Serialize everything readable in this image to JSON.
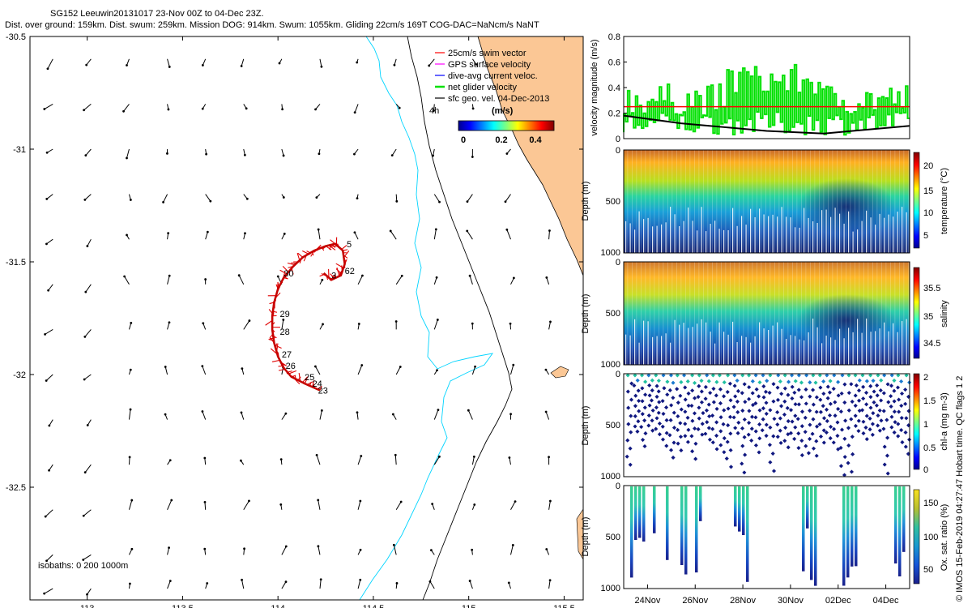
{
  "header": {
    "line1": "SG152 Leeuwin20131017 23-Nov 00Z to 04-Dec 23Z.",
    "line2": "Dist. over ground: 159km. Dist. swum: 259km. Mission DOG: 914km. Swum: 1055km. Gliding 22cm/s 169T COG-DAC=NaNcm/s NaNT"
  },
  "footer": "© IMOS 15-Feb-2019 04:27:47 Hobart time. QC flags 1  2",
  "colors": {
    "land": "#fbc795",
    "coast": "#000000",
    "isobath_cyan": "#00d4ff",
    "track": "#e00000",
    "net": "#00e000",
    "swim": "#ff0000"
  },
  "chart_data": [
    {
      "type": "map",
      "name": "glider-track-map",
      "xlim": [
        112.7,
        115.6
      ],
      "ylim": [
        -33.0,
        -30.5
      ],
      "xticks": [
        113,
        113.5,
        114,
        114.5,
        115,
        115.5
      ],
      "yticks": [
        -30.5,
        -31,
        -31.5,
        -32,
        -32.5
      ],
      "xtick_labels": [
        "113",
        "113.5",
        "114",
        "114.5",
        "115",
        "115.5"
      ],
      "ytick_labels": [
        "-30.5",
        "-31",
        "-31.5",
        "-32",
        "-32.5"
      ],
      "legend": {
        "placement": "top-right",
        "entries": [
          {
            "label": "25cm/s swim vector",
            "color": "#ff0000"
          },
          {
            "label": "GPS surface velocity",
            "color": "#ff00ff"
          },
          {
            "label": "dive-avg current veloc.",
            "color": "#0000ff"
          },
          {
            "label": "net glider velocity",
            "color": "#00e000"
          },
          {
            "label": "sfc geo. vel. 04-Dec-2013",
            "color": "#000000"
          }
        ],
        "colorbar_title": "(m/s)",
        "colorbar_ticks": [
          "0",
          "0.2",
          "0.4"
        ],
        "colorbar_range": [
          0,
          0.5
        ]
      },
      "annotation_4h": "4h",
      "isobaths_label": "isobaths: 0   200   1000m",
      "track": [
        [
          114.22,
          -32.07
        ],
        [
          114.14,
          -32.04
        ],
        [
          114.07,
          -32.01
        ],
        [
          114.03,
          -31.97
        ],
        [
          114.0,
          -31.92
        ],
        [
          113.98,
          -31.86
        ],
        [
          113.97,
          -31.8
        ],
        [
          113.97,
          -31.74
        ],
        [
          113.98,
          -31.68
        ],
        [
          114.0,
          -31.62
        ],
        [
          114.03,
          -31.57
        ],
        [
          114.08,
          -31.52
        ],
        [
          114.13,
          -31.48
        ],
        [
          114.19,
          -31.45
        ],
        [
          114.25,
          -31.43
        ],
        [
          114.3,
          -31.42
        ],
        [
          114.34,
          -31.45
        ],
        [
          114.35,
          -31.51
        ],
        [
          114.33,
          -31.56
        ],
        [
          114.28,
          -31.58
        ],
        [
          114.24,
          -31.55
        ]
      ],
      "day_labels": [
        {
          "text": "23",
          "lon": 114.21,
          "lat": -32.07
        },
        {
          "text": "24",
          "lon": 114.18,
          "lat": -32.04
        },
        {
          "text": "25",
          "lon": 114.14,
          "lat": -32.01
        },
        {
          "text": "26",
          "lon": 114.04,
          "lat": -31.96
        },
        {
          "text": "27",
          "lon": 114.02,
          "lat": -31.91
        },
        {
          "text": "28",
          "lon": 114.01,
          "lat": -31.81
        },
        {
          "text": "29",
          "lon": 114.01,
          "lat": -31.73
        },
        {
          "text": "30",
          "lon": 114.03,
          "lat": -31.55
        },
        {
          "text": "3",
          "lon": 114.28,
          "lat": -31.56
        },
        {
          "text": "5",
          "lon": 114.36,
          "lat": -31.42
        },
        {
          "text": "62",
          "lon": 114.35,
          "lat": -31.54
        }
      ],
      "vector_lons": [
        112.82,
        113.02,
        113.22,
        113.42,
        113.62,
        113.82,
        114.02,
        114.22,
        114.42,
        114.62,
        114.82,
        115.02,
        115.22,
        115.42
      ],
      "vector_lats": [
        -30.6,
        -30.8,
        -31.0,
        -31.2,
        -31.4,
        -31.6,
        -31.8,
        -32.0,
        -32.2,
        -32.4,
        -32.6,
        -32.8,
        -32.95
      ]
    },
    {
      "type": "line",
      "name": "velocity-magnitude",
      "ylabel": "velocity magnitude (m/s)",
      "ylim": [
        0,
        0.8
      ],
      "yticks": [
        "0",
        "0.2",
        "0.4",
        "0.6",
        "0.8"
      ],
      "series": [
        {
          "name": "swim",
          "color": "#ff0000",
          "values": [
            0.25,
            0.25
          ]
        },
        {
          "name": "net glider velocity",
          "color": "#00e000"
        },
        {
          "name": "sfc geo vel",
          "color": "#000000",
          "x": [
            0,
            0.1,
            0.2,
            0.3,
            0.4,
            0.5,
            0.6,
            0.7,
            0.8,
            0.9,
            1.0
          ],
          "values": [
            0.18,
            0.15,
            0.12,
            0.1,
            0.08,
            0.06,
            0.05,
            0.04,
            0.06,
            0.08,
            0.1
          ]
        }
      ]
    },
    {
      "type": "heatmap",
      "name": "temperature-section",
      "ylabel": "Depth (m)",
      "clabel": "temperature (°C)",
      "yticks": [
        "0",
        "500",
        "1000"
      ],
      "cticks": [
        "20",
        "15",
        "10",
        "5"
      ],
      "crange": [
        3,
        22
      ]
    },
    {
      "type": "heatmap",
      "name": "salinity-section",
      "ylabel": "Depth (m)",
      "clabel": "salinity",
      "yticks": [
        "0",
        "500",
        "1000"
      ],
      "cticks": [
        "35.5",
        "35",
        "34.5"
      ],
      "crange": [
        34.3,
        35.8
      ]
    },
    {
      "type": "scatter",
      "name": "chla-section",
      "ylabel": "Depth (m)",
      "clabel": "chl-a (mg m-3)",
      "yticks": [
        "0",
        "500",
        "1000"
      ],
      "cticks": [
        "2",
        "1.5",
        "1",
        "0.5",
        "0"
      ],
      "crange": [
        0,
        2
      ]
    },
    {
      "type": "heatmap",
      "name": "oxygen-section",
      "ylabel": "Depth (m)",
      "clabel": "Ox. sat. ratio (%)",
      "yticks": [
        "0",
        "500",
        "1000"
      ],
      "cticks": [
        "150",
        "100",
        "50"
      ],
      "crange": [
        30,
        170
      ],
      "xtick_labels": [
        "24Nov",
        "26Nov",
        "28Nov",
        "30Nov",
        "02Dec",
        "04Dec"
      ],
      "xticks": [
        1,
        3,
        5,
        7,
        9,
        11
      ],
      "xlim": [
        0,
        12
      ]
    }
  ]
}
